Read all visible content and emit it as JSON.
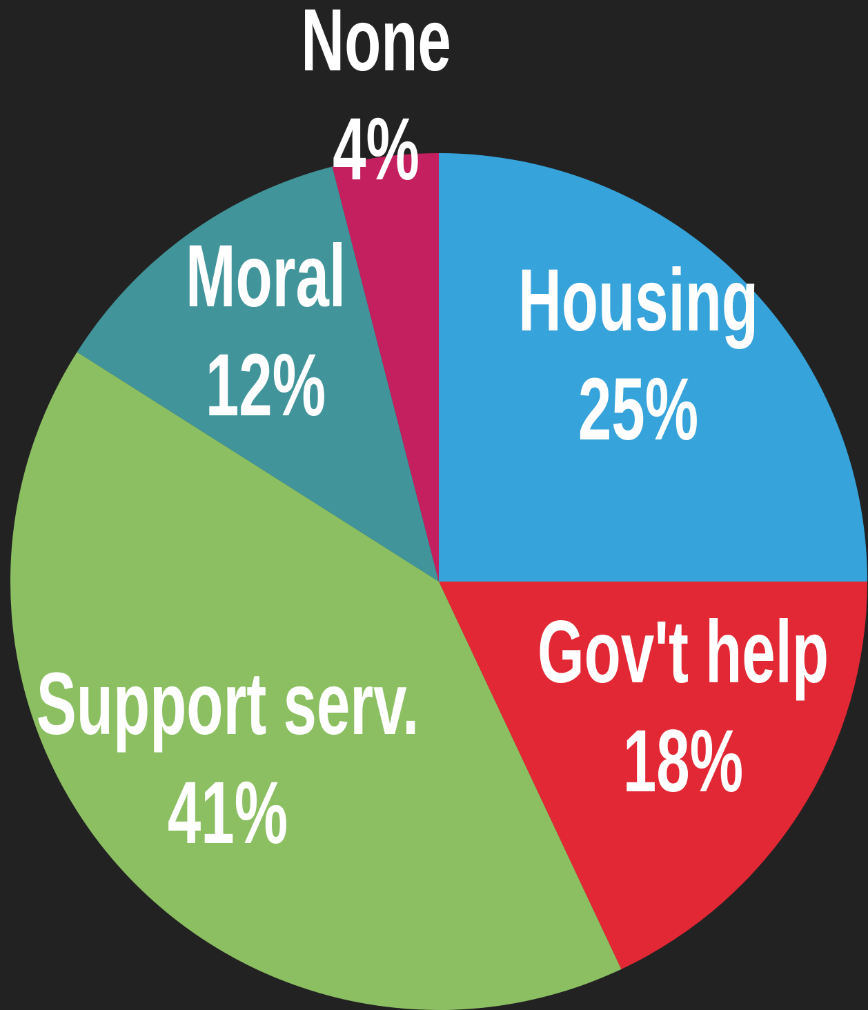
{
  "chart_data": {
    "type": "pie",
    "categories": [
      "Housing",
      "Gov't help",
      "Support serv.",
      "Moral",
      "None"
    ],
    "values": [
      25,
      18,
      41,
      12,
      4
    ],
    "value_labels": [
      "25%",
      "18%",
      "41%",
      "12%",
      "4%"
    ],
    "colors": [
      "#36a3da",
      "#e22834",
      "#8cbf62",
      "#41959a",
      "#c41f5e"
    ]
  }
}
